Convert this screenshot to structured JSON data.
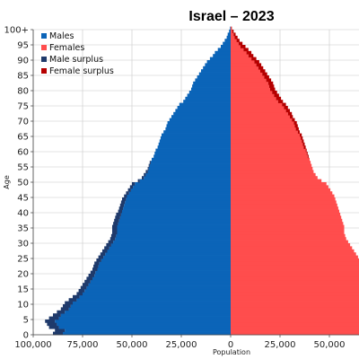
{
  "chart_data": {
    "type": "bar",
    "orientation": "population-pyramid",
    "title": "Israel – 2023",
    "xlabel": "Population",
    "ylabel": "Age",
    "ylim": [
      0,
      100
    ],
    "xlim": [
      -100000,
      65000
    ],
    "yticks": [
      0,
      5,
      10,
      15,
      20,
      25,
      30,
      35,
      40,
      45,
      50,
      55,
      60,
      65,
      70,
      75,
      80,
      85,
      90,
      95,
      100
    ],
    "ytick_labels": [
      "0",
      "5",
      "10",
      "15",
      "20",
      "25",
      "30",
      "35",
      "40",
      "45",
      "50",
      "55",
      "60",
      "65",
      "70",
      "75",
      "80",
      "85",
      "90",
      "95",
      "100+"
    ],
    "xticks": [
      -100000,
      -75000,
      -50000,
      -25000,
      0,
      25000,
      50000
    ],
    "xtick_labels": [
      "100,000",
      "75,000",
      "50,000",
      "25,000",
      "0",
      "25,000",
      "50,000"
    ],
    "grid": true,
    "legend_position": "top-left",
    "legend": [
      {
        "label": "Males",
        "color": "#0b64b8"
      },
      {
        "label": "Females",
        "color": "#ff4d4d"
      },
      {
        "label": "Male surplus",
        "color": "#1f3a6b"
      },
      {
        "label": "Female surplus",
        "color": "#b50000"
      }
    ],
    "colors": {
      "males": "#0b64b8",
      "females": "#ff4d4d",
      "male_surplus": "#1f3a6b",
      "female_surplus": "#b50000"
    },
    "age_groups": [
      0,
      1,
      2,
      3,
      4,
      5,
      6,
      7,
      8,
      9,
      10,
      11,
      12,
      13,
      14,
      15,
      16,
      17,
      18,
      19,
      20,
      21,
      22,
      23,
      24,
      25,
      26,
      27,
      28,
      29,
      30,
      31,
      32,
      33,
      34,
      35,
      36,
      37,
      38,
      39,
      40,
      41,
      42,
      43,
      44,
      45,
      46,
      47,
      48,
      49,
      50,
      51,
      52,
      53,
      54,
      55,
      56,
      57,
      58,
      59,
      60,
      61,
      62,
      63,
      64,
      65,
      66,
      67,
      68,
      69,
      70,
      71,
      72,
      73,
      74,
      75,
      76,
      77,
      78,
      79,
      80,
      81,
      82,
      83,
      84,
      85,
      86,
      87,
      88,
      89,
      90,
      91,
      92,
      93,
      94,
      95,
      96,
      97,
      98,
      99,
      100
    ],
    "males": [
      90000,
      89000,
      92000,
      93000,
      94000,
      92000,
      90000,
      88000,
      86000,
      85000,
      84000,
      82000,
      80000,
      78000,
      77000,
      76000,
      75000,
      74000,
      73000,
      72000,
      71000,
      70000,
      69500,
      69000,
      68000,
      67000,
      66000,
      65000,
      64000,
      63000,
      62000,
      61000,
      60500,
      60000,
      60000,
      60000,
      59500,
      59000,
      58500,
      58000,
      57000,
      56500,
      56000,
      55500,
      55000,
      54000,
      53000,
      52000,
      51000,
      50000,
      47000,
      45000,
      44000,
      43000,
      42000,
      41500,
      41000,
      40000,
      39000,
      38500,
      38000,
      37000,
      36500,
      36000,
      35500,
      35000,
      34000,
      33000,
      32500,
      32000,
      31000,
      30000,
      29000,
      28000,
      27000,
      26000,
      24000,
      23000,
      22000,
      21000,
      20000,
      19500,
      19000,
      18000,
      17000,
      16000,
      15000,
      14000,
      13000,
      12000,
      10500,
      9000,
      8000,
      6500,
      5000,
      4000,
      3000,
      2000,
      1500,
      800,
      300
    ],
    "females": [
      85000,
      84000,
      87000,
      88000,
      89000,
      87000,
      86000,
      84000,
      82000,
      81000,
      80000,
      78000,
      76500,
      75000,
      74000,
      73000,
      72000,
      71000,
      70000,
      69000,
      68500,
      67500,
      67000,
      66500,
      65500,
      64500,
      63500,
      62500,
      61500,
      60500,
      59500,
      58500,
      58000,
      57500,
      57500,
      57500,
      57000,
      56500,
      56000,
      55500,
      55000,
      54500,
      54000,
      53500,
      53000,
      52500,
      51500,
      50500,
      49500,
      48500,
      46000,
      44000,
      43000,
      42000,
      41500,
      41000,
      40500,
      40000,
      39500,
      39000,
      38500,
      38000,
      37500,
      37000,
      36500,
      36000,
      35000,
      34500,
      34000,
      33500,
      32500,
      31500,
      31000,
      30000,
      29000,
      28000,
      26500,
      25500,
      24500,
      23500,
      22500,
      22000,
      21500,
      20500,
      19500,
      18500,
      17500,
      16500,
      15500,
      14500,
      13000,
      11500,
      10500,
      9000,
      7500,
      6000,
      4500,
      3500,
      2500,
      1500,
      600
    ]
  }
}
